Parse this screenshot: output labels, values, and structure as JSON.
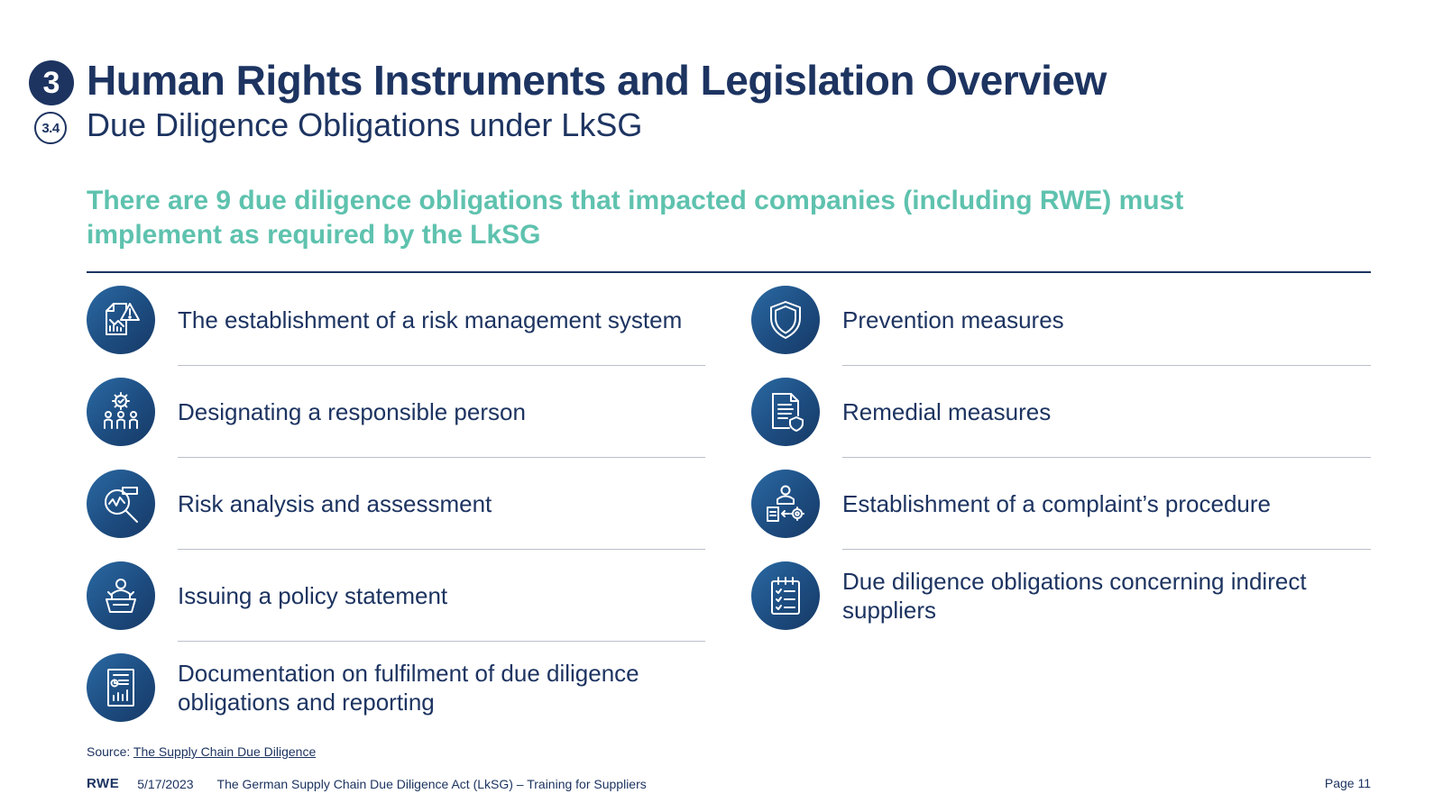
{
  "header": {
    "section_number": "3",
    "title": "Human Rights Instruments and Legislation Overview",
    "subsection_number": "3.4",
    "subtitle": "Due Diligence Obligations under LkSG"
  },
  "lead": "There are 9 due diligence obligations that impacted companies (including RWE) must implement as required by the LkSG",
  "obligations_left": [
    {
      "text": "The establishment of a risk management system",
      "icon": "risk-chart-icon"
    },
    {
      "text": "Designating a responsible person",
      "icon": "team-gear-icon"
    },
    {
      "text": "Risk analysis and assessment",
      "icon": "magnifier-chart-icon"
    },
    {
      "text": "Issuing a policy statement",
      "icon": "podium-speaker-icon"
    },
    {
      "text": "Documentation on fulfilment of due diligence obligations and reporting",
      "icon": "report-document-icon"
    }
  ],
  "obligations_right": [
    {
      "text": "Prevention measures",
      "icon": "shield-icon"
    },
    {
      "text": "Remedial measures",
      "icon": "document-shield-icon"
    },
    {
      "text": "Establishment of a complaint’s procedure",
      "icon": "person-process-icon"
    },
    {
      "text": "Due diligence obligations concerning indirect suppliers",
      "icon": "checklist-icon"
    }
  ],
  "source": {
    "label": "Source: ",
    "link_text": "The Supply Chain Due Diligence"
  },
  "footer": {
    "brand": "RWE",
    "date": "5/17/2023",
    "doc_title": "The German Supply Chain Due Diligence Act (LkSG) – Training for Suppliers",
    "page": "Page 11"
  },
  "colors": {
    "navy": "#1d3461",
    "teal": "#5ec2ae",
    "icon_blue": "#1d4c80"
  }
}
